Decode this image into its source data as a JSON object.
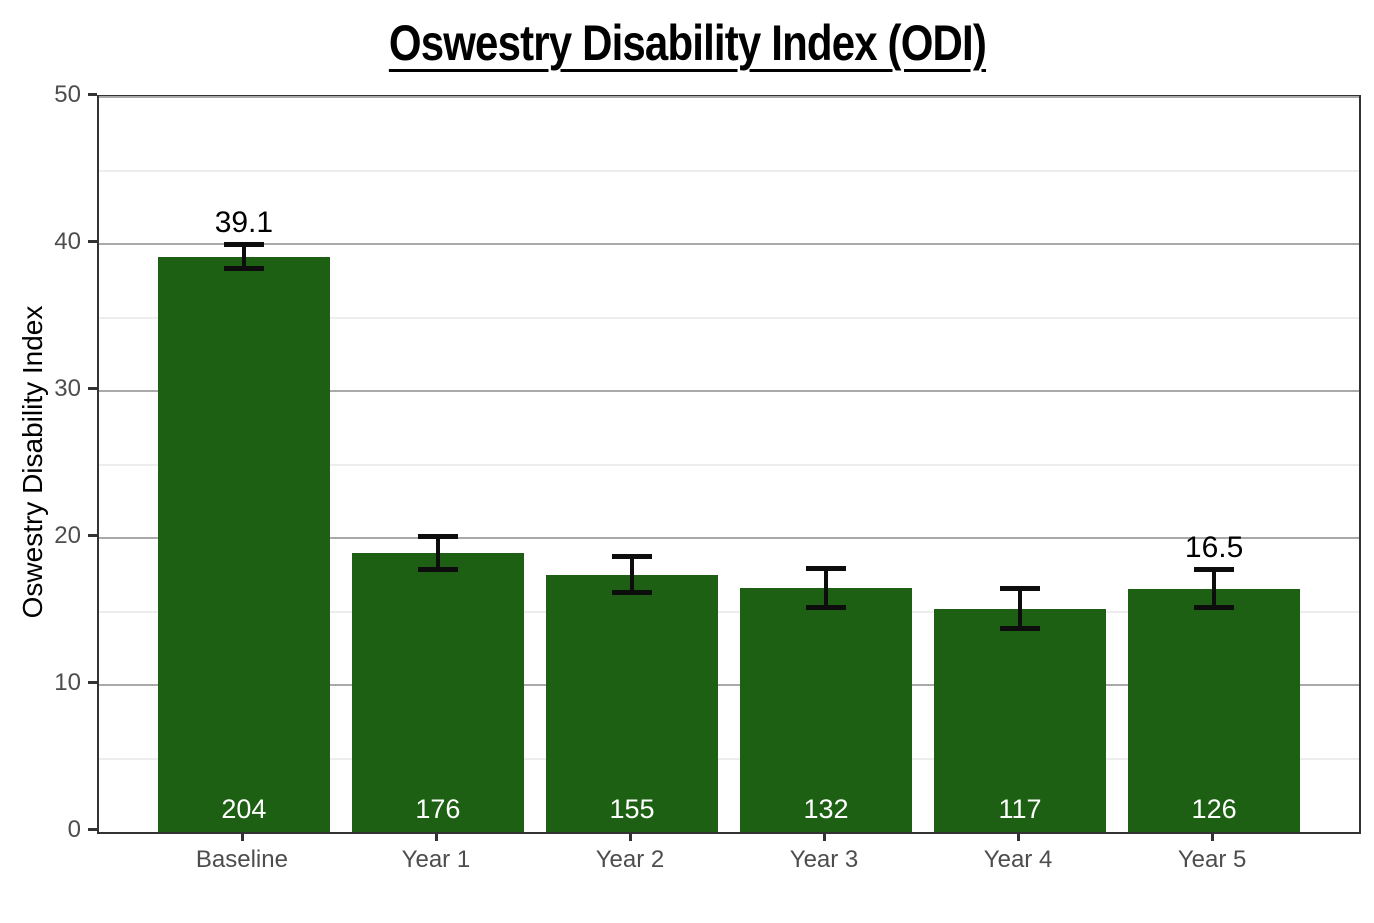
{
  "chart_data": {
    "type": "bar",
    "title": "Oswestry Disability Index (ODI)",
    "ylabel": "Oswestry Disability Index",
    "xlabel": "",
    "categories": [
      "Baseline",
      "Year 1",
      "Year 2",
      "Year 3",
      "Year 4",
      "Year 5"
    ],
    "values": [
      39.1,
      19.0,
      17.5,
      16.6,
      15.2,
      16.5
    ],
    "error_low": [
      38.4,
      17.9,
      16.3,
      15.3,
      13.9,
      15.3
    ],
    "error_high": [
      39.9,
      20.1,
      18.7,
      17.9,
      16.5,
      17.8
    ],
    "bar_counts": [
      "204",
      "176",
      "155",
      "132",
      "117",
      "126"
    ],
    "value_labels": [
      "39.1",
      "",
      "",
      "",
      "",
      "16.5"
    ],
    "ylim": [
      0,
      50
    ],
    "yticks": [
      0,
      10,
      20,
      30,
      40,
      50
    ],
    "minor_gridlines": [
      5,
      15,
      25,
      35,
      45
    ],
    "grid": true,
    "legend": false,
    "colors": {
      "bar": "#1d6013",
      "error_bar": "#0d0d0d",
      "panel_border": "#333333",
      "grid_major": "#a9a9a9",
      "grid_minor": "#ededed",
      "tick_text": "#4d4d4d",
      "bar_count_text": "#ffffff",
      "value_label_text": "#000000"
    }
  }
}
